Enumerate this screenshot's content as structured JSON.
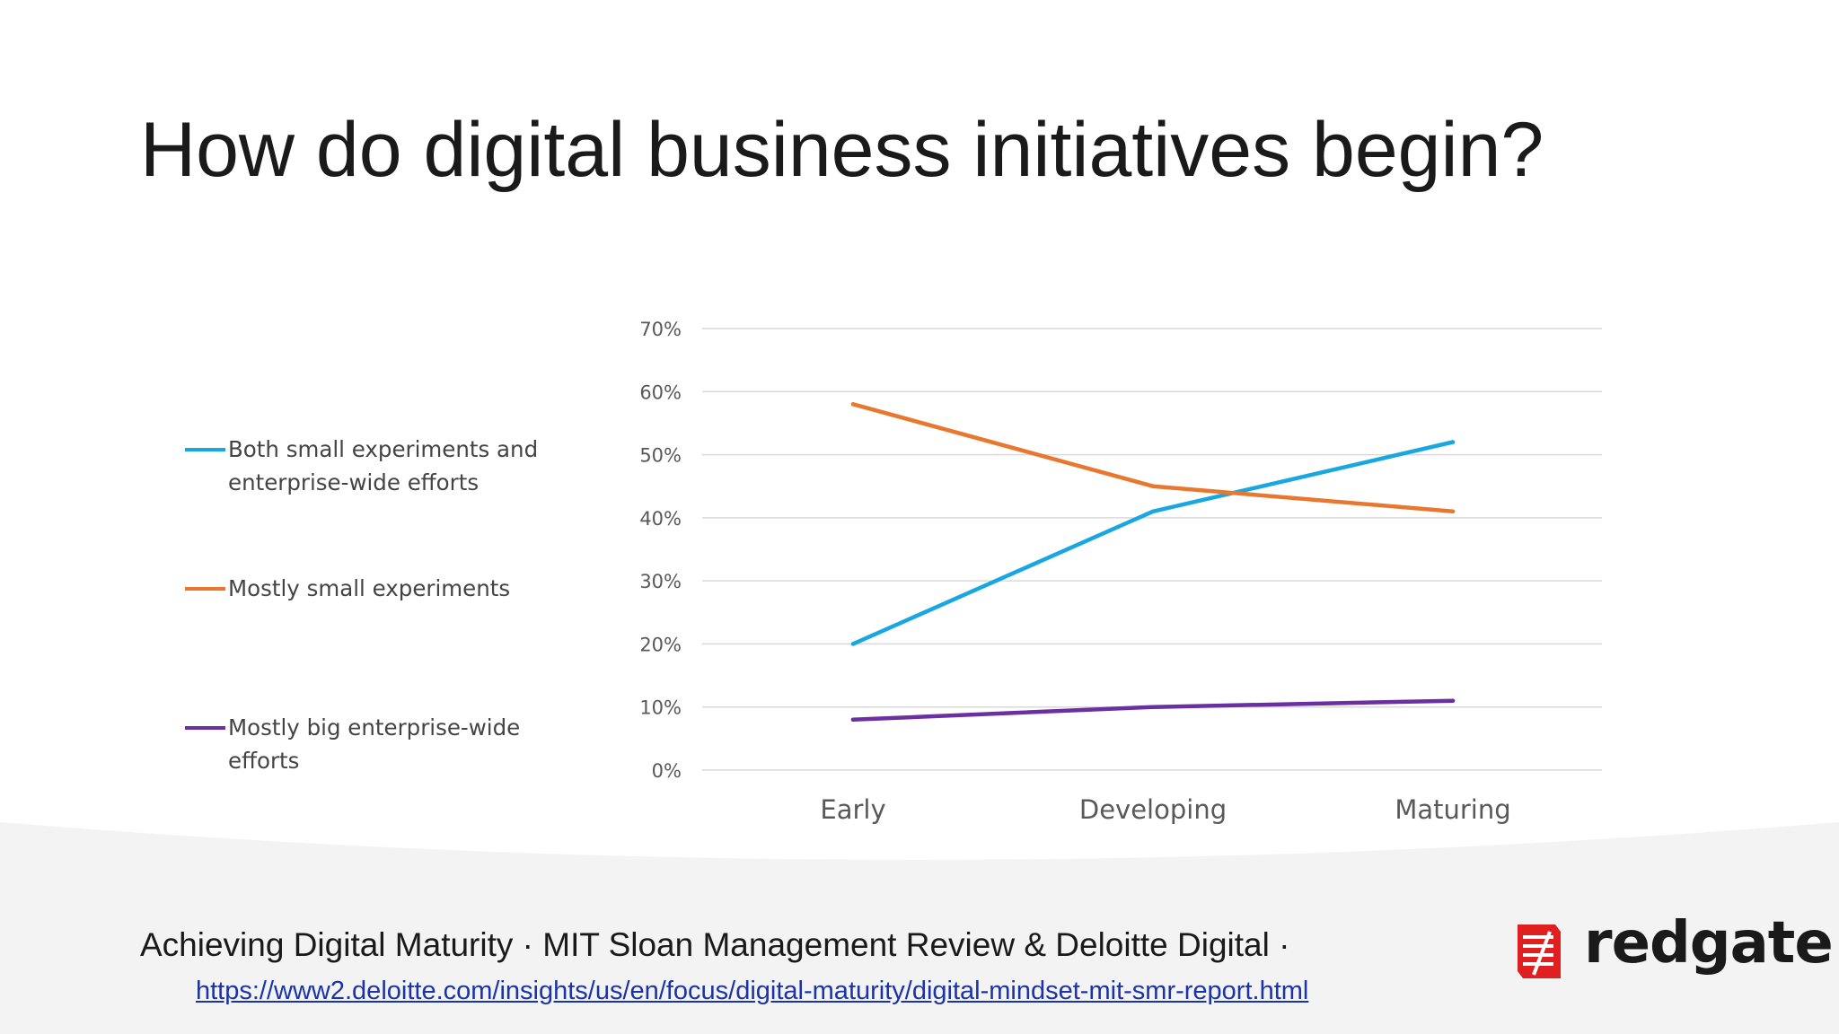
{
  "slide": {
    "title": "How do digital business initiatives begin?"
  },
  "chart_data": {
    "type": "line",
    "categories": [
      "Early",
      "Developing",
      "Maturing"
    ],
    "series": [
      {
        "name": "Both small experiments and enterprise-wide efforts",
        "values": [
          20,
          41,
          52
        ],
        "color": "#1aa7e0"
      },
      {
        "name": "Mostly small experiments",
        "values": [
          58,
          45,
          41
        ],
        "color": "#e8782f"
      },
      {
        "name": "Mostly big enterprise-wide efforts",
        "values": [
          8,
          10,
          11
        ],
        "color": "#6a2fa0"
      }
    ],
    "ylim": [
      0,
      70
    ],
    "yticks": [
      0,
      10,
      20,
      30,
      40,
      50,
      60,
      70
    ],
    "ytick_labels": [
      "0%",
      "10%",
      "20%",
      "30%",
      "40%",
      "50%",
      "60%",
      "70%"
    ],
    "grid": true,
    "legend_position": "left",
    "title": "",
    "xlabel": "",
    "ylabel": ""
  },
  "footer": {
    "source": "Achieving Digital Maturity · MIT Sloan Management Review & Deloitte Digital ·",
    "link": "https://www2.deloitte.com/insights/us/en/focus/digital-maturity/digital-mindset-mit-smr-report.html"
  },
  "logo": {
    "text": "redgate",
    "mark_color": "#e02020"
  }
}
